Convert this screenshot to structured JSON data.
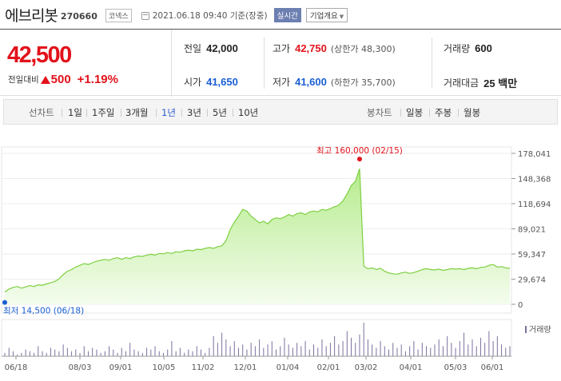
{
  "header": {
    "name": "에브리봇",
    "code": "270660",
    "market": "코넥스",
    "datetime": "2021.06.18 09:40  기준(장중)",
    "realtime_label": "실시간",
    "overview_label": "기업개요"
  },
  "price": {
    "current": "42,500",
    "change_label": "전일대비",
    "change_amount": "500",
    "change_percent": "+1.19%"
  },
  "stats": {
    "prev_close_label": "전일",
    "prev_close": "42,000",
    "high_label": "고가",
    "high": "42,750",
    "high_sub": "(상한가 48,300)",
    "volume_label": "거래량",
    "volume": "600",
    "open_label": "시가",
    "open": "41,650",
    "low_label": "저가",
    "low": "41,600",
    "low_sub": "(하한가 35,700)",
    "value_label": "거래대금",
    "value": "25 백만"
  },
  "periods": {
    "line_label": "선차트",
    "line_items": [
      "1일",
      "1주일",
      "3개월",
      "1년",
      "3년",
      "5년",
      "10년"
    ],
    "active": "1년",
    "candle_label": "봉차트",
    "candle_items": [
      "일봉",
      "주봉",
      "월봉"
    ]
  },
  "colors": {
    "up": "#e2121b",
    "down": "#1a5ed3",
    "area_top": "#c7f0a8",
    "line": "#7ccf3f",
    "volume_bar": "#7d6f9e"
  },
  "chart_data": {
    "type": "area",
    "title": "",
    "y_ticks": [
      "178,041",
      "148,368",
      "118,694",
      "89,021",
      "59,347",
      "29,674",
      "0"
    ],
    "ylim": [
      0,
      178041
    ],
    "x_ticks": [
      "06/18",
      "08/03",
      "09/01",
      "10/05",
      "11/02",
      "12/01",
      "01/04",
      "02/01",
      "03/02",
      "04/01",
      "05/03",
      "06/01"
    ],
    "max_annotation": "최고 160,000 (02/15)",
    "min_annotation": "최저 14,500 (06/18)",
    "volume_legend": "거래량",
    "values": [
      14500,
      18000,
      20000,
      21000,
      19000,
      20500,
      22000,
      21000,
      23000,
      22500,
      24000,
      25500,
      27000,
      30000,
      35000,
      39000,
      41000,
      44000,
      46000,
      48000,
      47000,
      49000,
      51000,
      52000,
      53000,
      52000,
      54000,
      55000,
      53000,
      55000,
      54000,
      56000,
      57000,
      56500,
      58000,
      59000,
      58000,
      60000,
      59500,
      61000,
      60000,
      62000,
      61500,
      63000,
      64000,
      63000,
      65000,
      64500,
      66000,
      67000,
      66000,
      68000,
      69000,
      75000,
      88000,
      97000,
      104000,
      112000,
      110000,
      104000,
      100000,
      96000,
      98000,
      95000,
      100000,
      102000,
      101000,
      103000,
      106000,
      104000,
      107000,
      108000,
      106000,
      109000,
      110000,
      109000,
      112000,
      111000,
      113000,
      115000,
      117000,
      122000,
      130000,
      140000,
      145000,
      160000,
      45000,
      42000,
      43000,
      41000,
      42500,
      39000,
      37000,
      36000,
      35500,
      37000,
      38000,
      36500,
      37500,
      39000,
      41000,
      42000,
      41000,
      40500,
      41500,
      40000,
      41000,
      42000,
      41500,
      42000,
      41000,
      42500,
      43000,
      42000,
      43500,
      44000,
      46000,
      47000,
      44000,
      44500,
      43000,
      42500
    ],
    "volumes": [
      2,
      5,
      3,
      1,
      2,
      4,
      3,
      2,
      6,
      3,
      2,
      5,
      4,
      3,
      7,
      5,
      3,
      4,
      2,
      6,
      3,
      5,
      4,
      2,
      3,
      6,
      4,
      2,
      5,
      3,
      8,
      4,
      3,
      2,
      5,
      4,
      6,
      3,
      2,
      4,
      9,
      3,
      5,
      2,
      4,
      3,
      6,
      4,
      2,
      5,
      12,
      8,
      14,
      10,
      6,
      9,
      5,
      7,
      4,
      8,
      6,
      10,
      5,
      7,
      9,
      4,
      6,
      11,
      7,
      5,
      8,
      6,
      9,
      4,
      7,
      5,
      10,
      6,
      8,
      12,
      7,
      9,
      15,
      11,
      8,
      13,
      20,
      10,
      7,
      5,
      9,
      6,
      4,
      8,
      5,
      7,
      3,
      6,
      9,
      4,
      8,
      6,
      5,
      7,
      10,
      6,
      12,
      8,
      5,
      9,
      14,
      7,
      10,
      6,
      11,
      8,
      15,
      9,
      12,
      7,
      5,
      6
    ]
  }
}
